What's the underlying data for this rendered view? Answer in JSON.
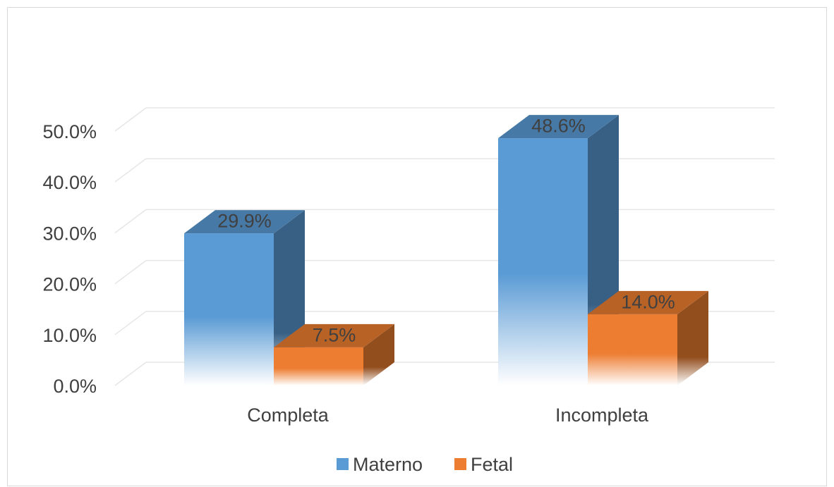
{
  "chart_data": {
    "type": "bar",
    "title": "",
    "xlabel": "",
    "ylabel": "",
    "categories": [
      "Completa",
      "Incompleta"
    ],
    "series": [
      {
        "name": "Materno",
        "values": [
          29.9,
          48.6
        ],
        "labels": [
          "29.9%",
          "48.6%"
        ],
        "color": "#5b9bd5"
      },
      {
        "name": "Fetal",
        "values": [
          7.5,
          14.0
        ],
        "labels": [
          "7.5%",
          "14.0%"
        ],
        "color": "#ed7d31"
      }
    ],
    "ylim": [
      0,
      50
    ],
    "y_ticks": [
      "0.0%",
      "10.0%",
      "20.0%",
      "30.0%",
      "40.0%",
      "50.0%"
    ],
    "grid": true,
    "legend_position": "bottom",
    "style": "3d-clustered-column"
  }
}
